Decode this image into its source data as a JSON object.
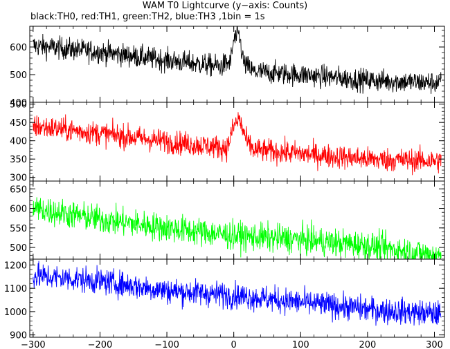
{
  "chart_data": {
    "type": "line",
    "title": "WAM T0 Lightcurve (y−axis: Counts)",
    "subtitle": "black:TH0, red:TH1, green:TH2, blue:TH3 ,1bin = 1s",
    "xlabel": "",
    "ylabel": "",
    "xlim": [
      -305,
      315
    ],
    "x_ticks": [
      "−300",
      "−200",
      "−100",
      "0",
      "100",
      "200",
      "300"
    ],
    "x_tick_values": [
      -300,
      -200,
      -100,
      0,
      100,
      200,
      300
    ],
    "grid": false,
    "panels": [
      {
        "name": "TH0",
        "color": "#000000",
        "ylim": [
          400,
          675
        ],
        "y_ticks": [
          400,
          500,
          600
        ],
        "y_tick_labels": [
          "400",
          "500",
          "600"
        ],
        "trend": [
          [
            -300,
            605
          ],
          [
            -200,
            582
          ],
          [
            -100,
            552
          ],
          [
            -20,
            530
          ],
          [
            -5,
            545
          ],
          [
            0,
            625
          ],
          [
            8,
            645
          ],
          [
            15,
            540
          ],
          [
            30,
            510
          ],
          [
            100,
            500
          ],
          [
            200,
            480
          ],
          [
            300,
            470
          ]
        ],
        "noise": 40
      },
      {
        "name": "TH1",
        "color": "#ff0000",
        "ylim": [
          290,
          505
        ],
        "y_ticks": [
          300,
          350,
          400,
          450,
          500
        ],
        "y_tick_labels": [
          "300",
          "350",
          "400",
          "450",
          "500"
        ],
        "trend": [
          [
            -300,
            440
          ],
          [
            -200,
            420
          ],
          [
            -100,
            398
          ],
          [
            -10,
            380
          ],
          [
            0,
            440
          ],
          [
            8,
            460
          ],
          [
            20,
            395
          ],
          [
            30,
            375
          ],
          [
            100,
            365
          ],
          [
            200,
            350
          ],
          [
            300,
            345
          ]
        ],
        "noise": 32
      },
      {
        "name": "TH2",
        "color": "#00ff00",
        "ylim": [
          470,
          670
        ],
        "y_ticks": [
          500,
          550,
          600,
          650
        ],
        "y_tick_labels": [
          "500",
          "550",
          "600",
          "650"
        ],
        "trend": [
          [
            -300,
            600
          ],
          [
            -200,
            572
          ],
          [
            -100,
            550
          ],
          [
            0,
            530
          ],
          [
            100,
            520
          ],
          [
            200,
            505
          ],
          [
            300,
            480
          ]
        ],
        "noise": 36
      },
      {
        "name": "TH3",
        "color": "#0000ff",
        "ylim": [
          890,
          1225
        ],
        "y_ticks": [
          900,
          1000,
          1100,
          1200
        ],
        "y_tick_labels": [
          "900",
          "1000",
          "1100",
          "1200"
        ],
        "trend": [
          [
            -300,
            1155
          ],
          [
            -200,
            1130
          ],
          [
            -100,
            1090
          ],
          [
            0,
            1070
          ],
          [
            100,
            1040
          ],
          [
            200,
            1010
          ],
          [
            300,
            990
          ]
        ],
        "noise": 55
      }
    ]
  }
}
